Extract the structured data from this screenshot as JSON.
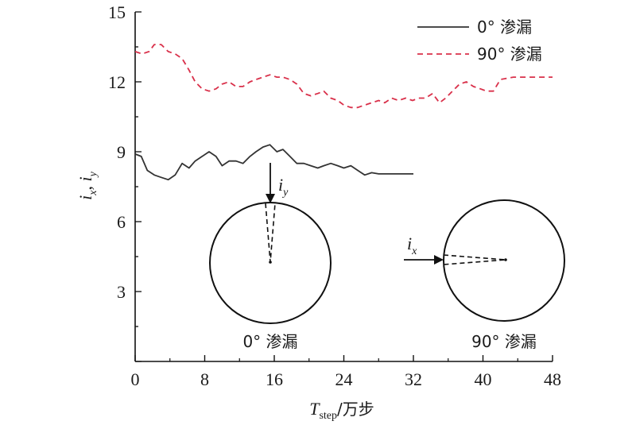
{
  "chart_data": {
    "type": "line",
    "x_axis": {
      "label_main": "T",
      "label_sub": "step",
      "label_unit": "/万步",
      "range": [
        0,
        48
      ],
      "ticks": [
        "0",
        "8",
        "16",
        "24",
        "32",
        "40",
        "48"
      ]
    },
    "y_axis": {
      "label_main": "i",
      "label_sub1": "x",
      "label_sep": ", ",
      "label_sub2": "y",
      "range": [
        0,
        15
      ],
      "ticks": [
        "3",
        "6",
        "9",
        "12",
        "15"
      ]
    },
    "legend": {
      "placement": "top-right"
    },
    "series": [
      {
        "name": "0° 渗漏",
        "color": "#333333",
        "style": "solid",
        "x": [
          0,
          0.7,
          1.4,
          2.2,
          3.0,
          3.8,
          4.6,
          5.4,
          6.2,
          6.9,
          7.7,
          8.5,
          9.3,
          10.0,
          10.8,
          11.6,
          12.4,
          13.2,
          13.9,
          14.7,
          15.5,
          16.3,
          17.0,
          17.8,
          18.6,
          19.4,
          20.2,
          21.0,
          21.7,
          22.5,
          23.3,
          24.0,
          24.8,
          25.6,
          26.4,
          27.2,
          28.0,
          32.0
        ],
        "y": [
          8.9,
          8.8,
          8.2,
          8.0,
          7.9,
          7.8,
          8.0,
          8.5,
          8.3,
          8.6,
          8.8,
          9.0,
          8.8,
          8.4,
          8.6,
          8.6,
          8.5,
          8.8,
          9.0,
          9.2,
          9.3,
          9.0,
          9.1,
          8.8,
          8.5,
          8.5,
          8.4,
          8.3,
          8.4,
          8.5,
          8.4,
          8.3,
          8.4,
          8.2,
          8.0,
          8.1,
          8.05,
          8.05
        ]
      },
      {
        "name": "90° 渗漏",
        "color": "#d9304a",
        "style": "dashed",
        "x": [
          0,
          0.8,
          1.6,
          2.2,
          3.0,
          3.8,
          4.6,
          5.4,
          6.2,
          6.9,
          7.7,
          8.5,
          9.3,
          10.0,
          10.8,
          11.6,
          12.4,
          13.2,
          13.9,
          14.7,
          15.5,
          16.3,
          17.0,
          17.8,
          18.6,
          19.4,
          20.2,
          21.0,
          21.7,
          22.5,
          23.3,
          24.0,
          24.8,
          25.6,
          26.4,
          27.2,
          28.0,
          28.7,
          29.5,
          30.3,
          31.1,
          31.9,
          32.6,
          33.4,
          34.2,
          35.0,
          35.7,
          36.5,
          37.3,
          38.1,
          38.9,
          39.7,
          40.4,
          41.2,
          42.0,
          43.5,
          48.0
        ],
        "y": [
          13.3,
          13.2,
          13.3,
          13.6,
          13.6,
          13.3,
          13.2,
          13.0,
          12.5,
          12.0,
          11.7,
          11.6,
          11.7,
          11.9,
          12.0,
          11.8,
          11.8,
          12.0,
          12.1,
          12.2,
          12.3,
          12.2,
          12.2,
          12.1,
          11.9,
          11.5,
          11.4,
          11.5,
          11.6,
          11.3,
          11.2,
          11.0,
          10.9,
          10.9,
          11.0,
          11.1,
          11.2,
          11.1,
          11.3,
          11.2,
          11.3,
          11.2,
          11.3,
          11.3,
          11.5,
          11.1,
          11.3,
          11.6,
          11.9,
          12.0,
          11.8,
          11.7,
          11.6,
          11.6,
          12.1,
          12.2,
          12.2
        ]
      }
    ]
  },
  "insets": [
    {
      "arrow_var": "i",
      "arrow_sub": "y",
      "caption": "0° 渗漏",
      "direction": "vertical"
    },
    {
      "arrow_var": "i",
      "arrow_sub": "x",
      "caption": "90° 渗漏",
      "direction": "horizontal"
    }
  ]
}
